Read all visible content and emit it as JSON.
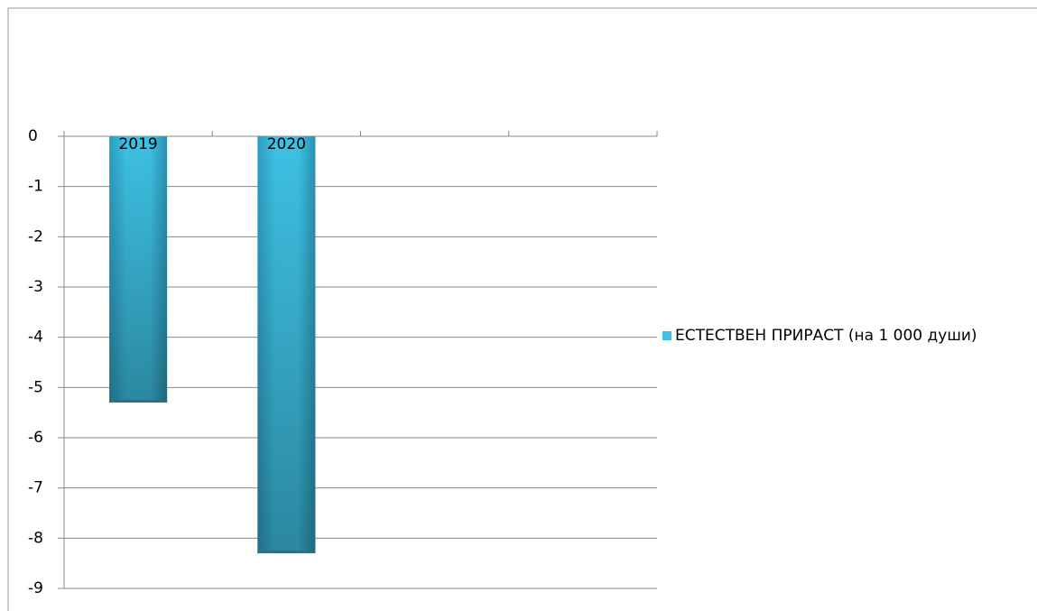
{
  "chart_data": {
    "type": "bar",
    "categories": [
      "2019",
      "2020",
      null,
      null
    ],
    "series": [
      {
        "name": "ЕСТЕСТВЕН ПРИРАСТ (на 1 000 души)",
        "color": "#3ec1e4",
        "values": [
          -5.3,
          -8.3,
          null,
          null
        ]
      }
    ],
    "ylim": [
      -9,
      0
    ],
    "yticks": [
      0,
      -1,
      -2,
      -3,
      -4,
      -5,
      -6,
      -7,
      -8,
      -9
    ],
    "grid": true,
    "legend": "right"
  }
}
